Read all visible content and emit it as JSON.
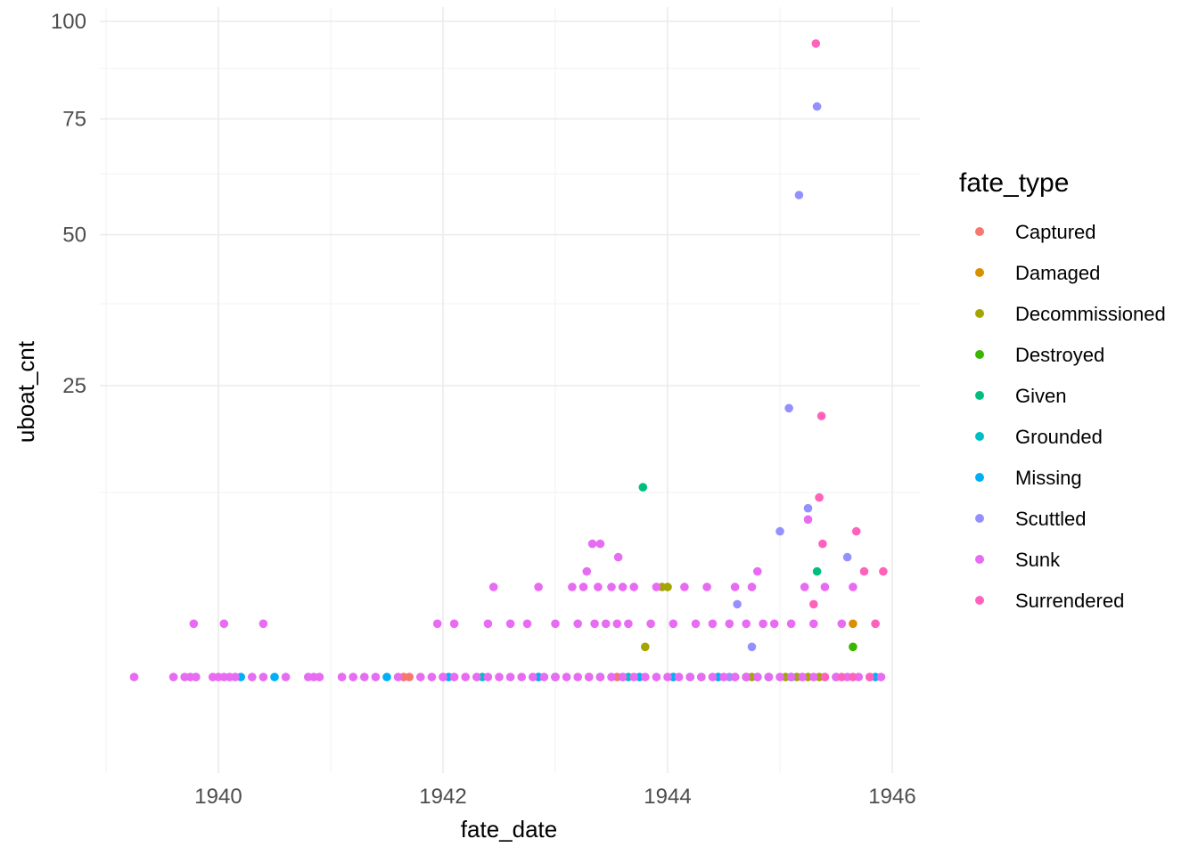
{
  "chart_data": {
    "type": "scatter",
    "title": "",
    "xlabel": "fate_date",
    "ylabel": "uboat_cnt",
    "y_scale": "sqrt",
    "xlim": [
      1939.0,
      1946.25
    ],
    "ylim": [
      0,
      100
    ],
    "x_ticks": [
      1940,
      1942,
      1944,
      1946
    ],
    "x_tick_labels": [
      "1940",
      "1942",
      "1944",
      "1946"
    ],
    "y_ticks": [
      25,
      50,
      75,
      100
    ],
    "y_tick_labels": [
      "25",
      "50",
      "75",
      "100"
    ],
    "grid": true,
    "legend_position": "right",
    "legend_title": "fate_type",
    "series": [
      {
        "name": "Captured",
        "color": "#F8766D",
        "x": [
          1941.65,
          1941.7,
          1943.55,
          1944.7,
          1945.2
        ],
        "y": [
          1,
          1,
          1,
          1,
          1
        ]
      },
      {
        "name": "Damaged",
        "color": "#D89000",
        "x": [
          1944.05,
          1944.8,
          1945.65,
          1942.85,
          1943.3,
          1944.45
        ],
        "y": [
          1,
          1,
          3,
          1,
          1,
          1
        ]
      },
      {
        "name": "Decommissioned",
        "color": "#A3A500",
        "x": [
          1943.0,
          1943.8,
          1944.0,
          1944.3,
          1944.6,
          1944.9,
          1945.05,
          1945.15,
          1945.25,
          1945.35,
          1944.75,
          1943.95
        ],
        "y": [
          1,
          2,
          5,
          1,
          1,
          1,
          1,
          1,
          1,
          1,
          1,
          5
        ]
      },
      {
        "name": "Destroyed",
        "color": "#39B600",
        "x": [
          1944.7,
          1945.65
        ],
        "y": [
          1,
          2
        ]
      },
      {
        "name": "Given",
        "color": "#00BF7D",
        "x": [
          1943.78,
          1945.33
        ],
        "y": [
          13,
          6
        ]
      },
      {
        "name": "Grounded",
        "color": "#00BFC4",
        "x": [
          1942.35,
          1943.65,
          1944.8,
          1945.1
        ],
        "y": [
          1,
          1,
          1,
          1
        ]
      },
      {
        "name": "Missing",
        "color": "#00B0F6",
        "x": [
          1940.2,
          1940.5,
          1941.5,
          1942.05,
          1942.85,
          1943.0,
          1943.4,
          1943.6,
          1943.75,
          1944.05,
          1944.2,
          1944.45,
          1944.9,
          1945.1,
          1945.85
        ],
        "y": [
          1,
          1,
          1,
          1,
          1,
          1,
          1,
          1,
          1,
          1,
          1,
          1,
          1,
          1,
          1
        ]
      },
      {
        "name": "Scuttled",
        "color": "#9590FF",
        "x": [
          1939.8,
          1942.0,
          1944.55,
          1944.62,
          1944.75,
          1945.0,
          1945.08,
          1945.17,
          1945.25,
          1945.33,
          1945.5,
          1945.6
        ],
        "y": [
          1,
          1,
          1,
          4,
          2,
          9,
          22,
          58,
          11,
          78,
          1,
          7
        ]
      },
      {
        "name": "Sunk",
        "color": "#E76BF3",
        "x": [
          1939.25,
          1939.6,
          1939.7,
          1939.75,
          1939.8,
          1939.95,
          1940.0,
          1940.05,
          1940.1,
          1940.15,
          1940.3,
          1940.4,
          1940.6,
          1940.8,
          1940.85,
          1940.9,
          1941.1,
          1941.2,
          1941.3,
          1941.4,
          1941.6,
          1941.8,
          1941.9,
          1942.0,
          1942.1,
          1942.2,
          1942.3,
          1942.4,
          1942.5,
          1942.6,
          1942.7,
          1942.8,
          1942.9,
          1943.0,
          1943.1,
          1943.2,
          1943.3,
          1943.4,
          1943.5,
          1943.6,
          1943.7,
          1943.8,
          1943.9,
          1944.0,
          1944.1,
          1944.2,
          1944.3,
          1944.4,
          1944.5,
          1944.6,
          1944.7,
          1944.8,
          1944.9,
          1945.0,
          1945.1,
          1945.2,
          1945.3,
          1945.4,
          1945.5,
          1945.6,
          1945.7,
          1945.8,
          1945.9,
          1939.78,
          1940.05,
          1940.4,
          1941.95,
          1942.1,
          1942.4,
          1942.6,
          1942.75,
          1943.0,
          1943.2,
          1943.35,
          1943.45,
          1943.55,
          1943.65,
          1943.85,
          1944.05,
          1944.25,
          1944.4,
          1944.55,
          1944.7,
          1944.85,
          1944.95,
          1945.1,
          1945.3,
          1945.55,
          1945.85,
          1942.45,
          1942.85,
          1943.15,
          1943.25,
          1943.38,
          1943.5,
          1943.6,
          1943.7,
          1943.9,
          1944.15,
          1944.35,
          1944.75,
          1945.22,
          1945.4,
          1945.65,
          1943.33,
          1943.4,
          1943.56,
          1943.28,
          1945.25,
          1944.6,
          1944.8
        ],
        "y": [
          1,
          1,
          1,
          1,
          1,
          1,
          1,
          1,
          1,
          1,
          1,
          1,
          1,
          1,
          1,
          1,
          1,
          1,
          1,
          1,
          1,
          1,
          1,
          1,
          1,
          1,
          1,
          1,
          1,
          1,
          1,
          1,
          1,
          1,
          1,
          1,
          1,
          1,
          1,
          1,
          1,
          1,
          1,
          1,
          1,
          1,
          1,
          1,
          1,
          1,
          1,
          1,
          1,
          1,
          1,
          1,
          1,
          1,
          1,
          1,
          1,
          1,
          1,
          3,
          3,
          3,
          3,
          3,
          3,
          3,
          3,
          3,
          3,
          3,
          3,
          3,
          3,
          3,
          3,
          3,
          3,
          3,
          3,
          3,
          3,
          3,
          3,
          3,
          3,
          5,
          5,
          5,
          5,
          5,
          5,
          5,
          5,
          5,
          5,
          5,
          5,
          5,
          5,
          5,
          8,
          8,
          7,
          6,
          10,
          5,
          6
        ]
      },
      {
        "name": "Surrendered",
        "color": "#FF62BC",
        "x": [
          1945.32,
          1945.37,
          1945.35,
          1945.38,
          1945.68,
          1945.75,
          1945.85,
          1945.92,
          1945.3,
          1945.4,
          1945.55,
          1945.65,
          1945.8
        ],
        "y": [
          94,
          21,
          12,
          8,
          9,
          6,
          3,
          6,
          4,
          1,
          1,
          1,
          1
        ]
      }
    ]
  }
}
